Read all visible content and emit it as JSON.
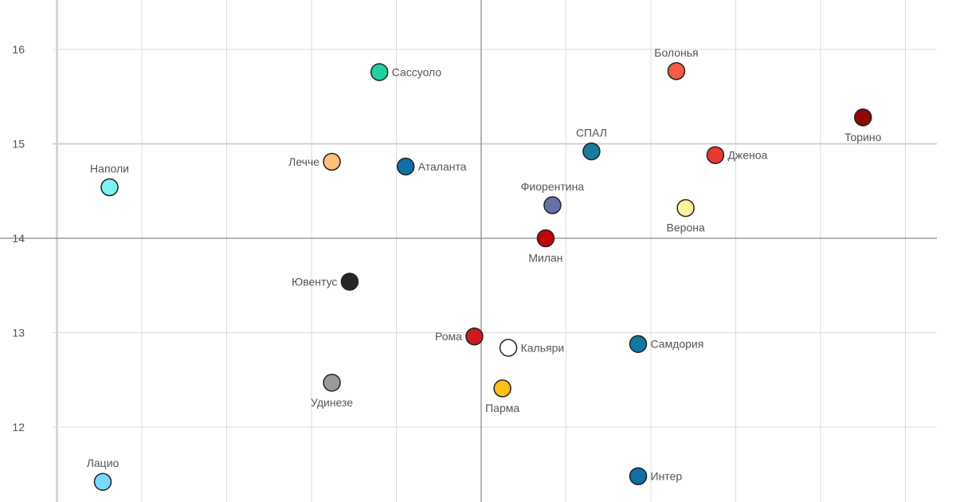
{
  "chart_data": {
    "type": "scatter",
    "title": "",
    "xlabel": "",
    "ylabel": "",
    "ylim": [
      11.25,
      16.5
    ],
    "xlim": [
      -5.0,
      5.75
    ],
    "x_gridlines": [
      -5,
      -4,
      -3,
      -2,
      -1,
      0,
      1,
      2,
      3,
      4,
      5
    ],
    "y_ticks": [
      {
        "value": 12,
        "label": "12"
      },
      {
        "value": 13,
        "label": "13"
      },
      {
        "value": 14,
        "label": "14"
      },
      {
        "value": 15,
        "label": "15"
      },
      {
        "value": 16,
        "label": "16"
      }
    ],
    "reference_lines": {
      "x": 0,
      "y": 14
    },
    "legend": "none",
    "tick_labels_x": false,
    "points": [
      {
        "name": "Болонья",
        "x": 2.3,
        "y": 15.77,
        "color": "#f45b4a",
        "label_pos": "above"
      },
      {
        "name": "Сассуоло",
        "x": -1.2,
        "y": 15.76,
        "color": "#1fd1a1",
        "label_pos": "right"
      },
      {
        "name": "Торино",
        "x": 4.5,
        "y": 15.28,
        "color": "#8f0a06",
        "label_pos": "below"
      },
      {
        "name": "СПАЛ",
        "x": 1.3,
        "y": 14.92,
        "color": "#1a7aa0",
        "label_pos": "above"
      },
      {
        "name": "Дженоа",
        "x": 2.76,
        "y": 14.88,
        "color": "#e8392e",
        "label_pos": "right"
      },
      {
        "name": "Лечче",
        "x": -1.76,
        "y": 14.81,
        "color": "#fdc079",
        "label_pos": "left"
      },
      {
        "name": "Аталанта",
        "x": -0.89,
        "y": 14.76,
        "color": "#0f70a3",
        "label_pos": "right"
      },
      {
        "name": "Наполи",
        "x": -4.38,
        "y": 14.54,
        "color": "#7bf3f0",
        "label_pos": "above"
      },
      {
        "name": "Фиорентина",
        "x": 0.84,
        "y": 14.35,
        "color": "#6671a9",
        "label_pos": "above"
      },
      {
        "name": "Верона",
        "x": 2.41,
        "y": 14.32,
        "color": "#fdf39c",
        "label_pos": "below"
      },
      {
        "name": "Милан",
        "x": 0.76,
        "y": 14.0,
        "color": "#c00609",
        "label_pos": "below"
      },
      {
        "name": "Ювентус",
        "x": -1.55,
        "y": 13.54,
        "color": "#262626",
        "label_pos": "left"
      },
      {
        "name": "Рома",
        "x": -0.08,
        "y": 12.96,
        "color": "#cc1a1f",
        "label_pos": "left"
      },
      {
        "name": "Самдория",
        "x": 1.85,
        "y": 12.88,
        "color": "#1178a4",
        "label_pos": "right"
      },
      {
        "name": "Кальяри",
        "x": 0.32,
        "y": 12.84,
        "color": "#ffffff",
        "label_pos": "right"
      },
      {
        "name": "Удинезе",
        "x": -1.76,
        "y": 12.47,
        "color": "#9a9a9a",
        "label_pos": "below"
      },
      {
        "name": "Парма",
        "x": 0.25,
        "y": 12.41,
        "color": "#fcc01a",
        "label_pos": "below"
      },
      {
        "name": "Интер",
        "x": 1.85,
        "y": 11.48,
        "color": "#0f70a3",
        "label_pos": "right"
      },
      {
        "name": "Лацио",
        "x": -4.46,
        "y": 11.42,
        "color": "#7ad8fb",
        "label_pos": "above"
      }
    ]
  }
}
